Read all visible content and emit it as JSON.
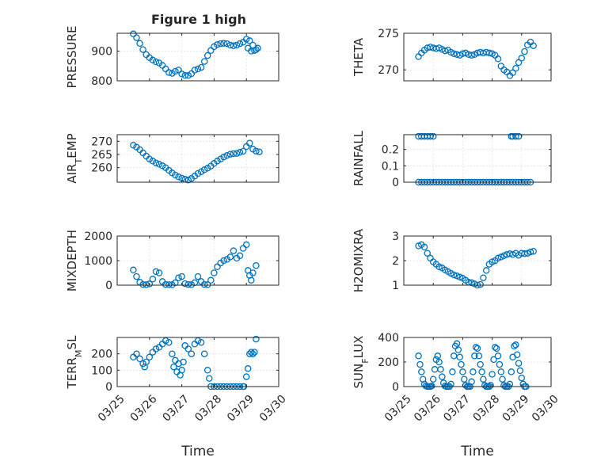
{
  "figure": {
    "title": "Figure 1 high"
  },
  "colors": {
    "marker": "#0072BD",
    "axis": "#262626",
    "grid": "#d9d9d9",
    "background": "#ffffff"
  },
  "chart_data": [
    {
      "type": "scatter",
      "title": "Figure 1 high",
      "ylabel": "PRESSURE",
      "xlabel": "",
      "xlim": [
        25.0,
        30.0
      ],
      "ylim": [
        800,
        960
      ],
      "yticks": [
        800,
        900
      ],
      "yticklabels": [
        "800",
        "900"
      ],
      "xticks": [
        25,
        26,
        27,
        28,
        29,
        30
      ],
      "xticklabels": [],
      "grid": true,
      "x": [
        25.5,
        25.6,
        25.7,
        25.8,
        25.9,
        26.0,
        26.1,
        26.2,
        26.3,
        26.4,
        26.5,
        26.6,
        26.7,
        26.8,
        26.9,
        27.0,
        27.1,
        27.2,
        27.3,
        27.4,
        27.5,
        27.6,
        27.7,
        27.8,
        27.9,
        28.0,
        28.1,
        28.2,
        28.3,
        28.4,
        28.5,
        28.6,
        28.7,
        28.8,
        28.9,
        29.0,
        29.05,
        29.1,
        29.15,
        29.2,
        29.25,
        29.3,
        29.35
      ],
      "y": [
        958,
        945,
        926,
        905,
        888,
        878,
        870,
        864,
        860,
        852,
        840,
        828,
        825,
        832,
        836,
        823,
        818,
        818,
        824,
        836,
        840,
        845,
        865,
        885,
        902,
        915,
        922,
        925,
        926,
        925,
        920,
        918,
        920,
        925,
        930,
        940,
        910,
        935,
        900,
        920,
        902,
        905,
        910
      ]
    },
    {
      "type": "scatter",
      "ylabel": "THETA",
      "xlabel": "",
      "xlim": [
        25.0,
        30.0
      ],
      "ylim": [
        268.5,
        275.0
      ],
      "yticks": [
        270,
        275
      ],
      "yticklabels": [
        "270",
        "275"
      ],
      "xticks": [
        25,
        26,
        27,
        28,
        29,
        30
      ],
      "xticklabels": [],
      "grid": true,
      "x": [
        25.5,
        25.6,
        25.7,
        25.8,
        25.9,
        26.0,
        26.1,
        26.2,
        26.3,
        26.4,
        26.5,
        26.6,
        26.7,
        26.8,
        26.9,
        27.0,
        27.1,
        27.2,
        27.3,
        27.4,
        27.5,
        27.6,
        27.7,
        27.8,
        27.9,
        28.0,
        28.1,
        28.2,
        28.3,
        28.4,
        28.5,
        28.6,
        28.7,
        28.8,
        28.9,
        29.0,
        29.1,
        29.2,
        29.3,
        29.4
      ],
      "y": [
        271.8,
        272.3,
        272.7,
        273.0,
        273.1,
        273.0,
        272.9,
        273.0,
        272.8,
        272.6,
        272.7,
        272.4,
        272.2,
        272.1,
        272.0,
        272.2,
        272.3,
        272.1,
        272.0,
        272.1,
        272.3,
        272.4,
        272.3,
        272.4,
        272.3,
        272.2,
        272.0,
        271.5,
        270.5,
        270.0,
        269.7,
        269.2,
        269.6,
        270.2,
        271.0,
        271.6,
        272.5,
        273.4,
        273.8,
        273.3
      ]
    },
    {
      "type": "scatter",
      "ylabel": "AIR_TEMP",
      "xlabel": "",
      "xlim": [
        25.0,
        30.0
      ],
      "ylim": [
        254.5,
        272.5
      ],
      "yticks": [
        260,
        265,
        270
      ],
      "yticklabels": [
        "260",
        "265",
        "270"
      ],
      "xticks": [
        25,
        26,
        27,
        28,
        29,
        30
      ],
      "xticklabels": [],
      "grid": true,
      "x": [
        25.5,
        25.6,
        25.7,
        25.8,
        25.9,
        26.0,
        26.1,
        26.2,
        26.3,
        26.4,
        26.5,
        26.6,
        26.7,
        26.8,
        26.9,
        27.0,
        27.1,
        27.2,
        27.3,
        27.4,
        27.5,
        27.6,
        27.7,
        27.8,
        27.9,
        28.0,
        28.1,
        28.2,
        28.3,
        28.4,
        28.5,
        28.6,
        28.7,
        28.8,
        28.9,
        29.0,
        29.1,
        29.2,
        29.3,
        29.4
      ],
      "y": [
        268.5,
        267.8,
        266.8,
        265.6,
        264.4,
        263.3,
        262.5,
        261.8,
        261.3,
        260.7,
        260.0,
        259.0,
        258.0,
        257.2,
        256.5,
        256.0,
        255.6,
        255.3,
        255.9,
        256.8,
        257.8,
        258.5,
        259.2,
        259.8,
        260.6,
        261.6,
        262.5,
        263.3,
        264.0,
        264.6,
        265.1,
        265.3,
        265.4,
        265.8,
        266.2,
        268.0,
        269.3,
        267.0,
        266.3,
        266.0
      ]
    },
    {
      "type": "scatter",
      "ylabel": "RAINFALL",
      "xlabel": "",
      "xlim": [
        25.0,
        30.0
      ],
      "ylim": [
        0,
        0.29
      ],
      "yticks": [
        0,
        0.1,
        0.2
      ],
      "yticklabels": [
        "0",
        "0.1",
        "0.2"
      ],
      "xticks": [
        25,
        26,
        27,
        28,
        29,
        30
      ],
      "xticklabels": [],
      "grid": true,
      "x": [
        25.5,
        25.6,
        25.7,
        25.8,
        25.9,
        26.0,
        26.1,
        26.2,
        26.3,
        26.4,
        26.5,
        26.6,
        26.7,
        26.8,
        26.9,
        27.0,
        27.1,
        27.2,
        27.3,
        27.4,
        27.5,
        27.6,
        27.7,
        27.8,
        27.9,
        28.0,
        28.1,
        28.2,
        28.3,
        28.4,
        28.5,
        28.6,
        28.7,
        28.8,
        28.9,
        29.0,
        29.1,
        29.2,
        29.3,
        25.5,
        25.6,
        25.7,
        25.8,
        25.9,
        26.0,
        28.65,
        28.7,
        28.8,
        28.9
      ],
      "y": [
        0,
        0,
        0,
        0,
        0,
        0,
        0,
        0,
        0,
        0,
        0,
        0,
        0,
        0,
        0,
        0,
        0,
        0,
        0,
        0,
        0,
        0,
        0,
        0,
        0,
        0,
        0,
        0,
        0,
        0,
        0,
        0,
        0,
        0,
        0,
        0,
        0,
        0,
        0,
        0.28,
        0.28,
        0.28,
        0.28,
        0.28,
        0.28,
        0.28,
        0.28,
        0.28,
        0.28
      ]
    },
    {
      "type": "scatter",
      "ylabel": "MIXDEPTH",
      "xlabel": "",
      "xlim": [
        25.0,
        30.0
      ],
      "ylim": [
        0,
        2000
      ],
      "yticks": [
        0,
        1000,
        2000
      ],
      "yticklabels": [
        "0",
        "1000",
        "2000"
      ],
      "xticks": [
        25,
        26,
        27,
        28,
        29,
        30
      ],
      "xticklabels": [],
      "grid": true,
      "x": [
        25.5,
        25.6,
        25.7,
        25.8,
        25.9,
        26.0,
        26.1,
        26.2,
        26.3,
        26.4,
        26.5,
        26.6,
        26.7,
        26.8,
        26.9,
        27.0,
        27.1,
        27.2,
        27.3,
        27.4,
        27.5,
        27.6,
        27.7,
        27.8,
        27.9,
        28.0,
        28.1,
        28.2,
        28.3,
        28.4,
        28.5,
        28.6,
        28.7,
        28.8,
        28.9,
        29.0,
        29.05,
        29.1,
        29.15,
        29.2,
        29.3
      ],
      "y": [
        620,
        350,
        120,
        30,
        20,
        50,
        250,
        550,
        500,
        150,
        30,
        20,
        20,
        100,
        300,
        350,
        60,
        30,
        20,
        100,
        350,
        150,
        30,
        20,
        200,
        500,
        750,
        900,
        1000,
        1050,
        1150,
        1400,
        1100,
        1200,
        1500,
        1650,
        600,
        400,
        200,
        500,
        800
      ]
    },
    {
      "type": "scatter",
      "ylabel": "H2OMIXRA",
      "xlabel": "",
      "xlim": [
        25.0,
        30.0
      ],
      "ylim": [
        1.0,
        3.0
      ],
      "yticks": [
        1,
        2,
        3
      ],
      "yticklabels": [
        "1",
        "2",
        "3"
      ],
      "xticks": [
        25,
        26,
        27,
        28,
        29,
        30
      ],
      "xticklabels": [],
      "grid": true,
      "x": [
        25.5,
        25.6,
        25.7,
        25.8,
        25.9,
        26.0,
        26.1,
        26.2,
        26.3,
        26.4,
        26.5,
        26.6,
        26.7,
        26.8,
        26.9,
        27.0,
        27.1,
        27.2,
        27.3,
        27.4,
        27.5,
        27.6,
        27.7,
        27.8,
        27.9,
        28.0,
        28.1,
        28.2,
        28.3,
        28.4,
        28.5,
        28.6,
        28.7,
        28.8,
        28.9,
        29.0,
        29.1,
        29.2,
        29.3,
        29.4
      ],
      "y": [
        2.6,
        2.65,
        2.55,
        2.3,
        2.1,
        1.95,
        1.85,
        1.75,
        1.7,
        1.62,
        1.55,
        1.48,
        1.42,
        1.38,
        1.33,
        1.28,
        1.2,
        1.12,
        1.1,
        1.05,
        1.0,
        1.03,
        1.3,
        1.6,
        1.85,
        1.95,
        2.0,
        2.1,
        2.15,
        2.2,
        2.25,
        2.28,
        2.25,
        2.3,
        2.22,
        2.3,
        2.28,
        2.3,
        2.35,
        2.38
      ]
    },
    {
      "type": "scatter",
      "ylabel": "TERR_MSL",
      "xlabel": "Time",
      "xlim": [
        25.0,
        30.0
      ],
      "ylim": [
        0,
        300
      ],
      "yticks": [
        0,
        100,
        200
      ],
      "yticklabels": [
        "0",
        "100",
        "200"
      ],
      "xticks": [
        25,
        26,
        27,
        28,
        29,
        30
      ],
      "xticklabels": [
        "03/25",
        "03/26",
        "03/27",
        "03/28",
        "03/29",
        "03/30"
      ],
      "grid": true,
      "x": [
        25.5,
        25.6,
        25.7,
        25.8,
        25.85,
        25.9,
        26.0,
        26.1,
        26.2,
        26.3,
        26.4,
        26.5,
        26.6,
        26.7,
        26.75,
        26.8,
        26.85,
        26.9,
        26.95,
        27.0,
        27.05,
        27.1,
        27.2,
        27.3,
        27.4,
        27.5,
        27.6,
        27.7,
        27.8,
        27.85,
        27.9,
        28.0,
        28.1,
        28.2,
        28.3,
        28.4,
        28.5,
        28.6,
        28.7,
        28.8,
        28.9,
        28.92,
        29.0,
        29.05,
        29.1,
        29.15,
        29.2,
        29.25,
        29.3
      ],
      "y": [
        180,
        200,
        170,
        140,
        120,
        150,
        180,
        210,
        230,
        240,
        260,
        280,
        270,
        200,
        120,
        160,
        90,
        140,
        70,
        100,
        150,
        250,
        230,
        200,
        260,
        280,
        270,
        200,
        100,
        50,
        0,
        0,
        0,
        0,
        0,
        0,
        0,
        0,
        0,
        0,
        0,
        0,
        60,
        110,
        200,
        210,
        200,
        210,
        290
      ]
    },
    {
      "type": "scatter",
      "ylabel": "SUN_FLUX",
      "xlabel": "Time",
      "xlim": [
        25.0,
        30.0
      ],
      "ylim": [
        0,
        400
      ],
      "yticks": [
        0,
        200,
        400
      ],
      "yticklabels": [
        "0",
        "200",
        "400"
      ],
      "xticks": [
        25,
        26,
        27,
        28,
        29,
        30
      ],
      "xticklabels": [
        "03/25",
        "03/26",
        "03/27",
        "03/28",
        "03/29",
        "03/30"
      ],
      "grid": true,
      "x": [
        25.5,
        25.55,
        25.6,
        25.65,
        25.7,
        25.75,
        25.8,
        25.85,
        25.9,
        25.95,
        26.0,
        26.05,
        26.1,
        26.15,
        26.2,
        26.25,
        26.3,
        26.35,
        26.4,
        26.45,
        26.5,
        26.55,
        26.6,
        26.65,
        26.7,
        26.75,
        26.8,
        26.85,
        26.9,
        26.95,
        27.0,
        27.05,
        27.1,
        27.15,
        27.2,
        27.25,
        27.3,
        27.35,
        27.4,
        27.45,
        27.5,
        27.55,
        27.6,
        27.65,
        27.7,
        27.75,
        27.8,
        27.85,
        27.9,
        27.95,
        28.0,
        28.05,
        28.1,
        28.15,
        28.2,
        28.25,
        28.3,
        28.35,
        28.4,
        28.45,
        28.5,
        28.55,
        28.6,
        28.65,
        28.7,
        28.75,
        28.8,
        28.85,
        28.9,
        28.95,
        29.0,
        29.05,
        29.1,
        29.15
      ],
      "y": [
        250,
        180,
        120,
        60,
        20,
        5,
        0,
        0,
        0,
        5,
        60,
        140,
        220,
        250,
        200,
        140,
        80,
        30,
        5,
        0,
        0,
        0,
        20,
        120,
        250,
        330,
        350,
        300,
        240,
        180,
        120,
        60,
        10,
        0,
        0,
        0,
        40,
        120,
        250,
        320,
        310,
        250,
        180,
        120,
        60,
        10,
        0,
        0,
        0,
        10,
        100,
        220,
        320,
        310,
        250,
        180,
        120,
        60,
        10,
        0,
        0,
        0,
        20,
        120,
        240,
        330,
        340,
        260,
        190,
        130,
        70,
        20,
        0,
        0
      ]
    }
  ]
}
